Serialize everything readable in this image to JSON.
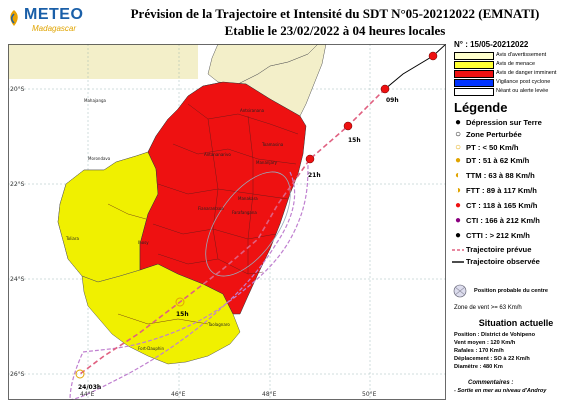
{
  "header": {
    "logo_text": "METEO",
    "logo_sub": "Madagascar",
    "title_line1": "Prévision de la Trajectoire et Intensité du SDT N°05-20212022 (EMNATI)",
    "title_line2": "Etablie le 23/02/2022 à 04 heures locales"
  },
  "map": {
    "lon_labels": [
      "44°E",
      "46°E",
      "48°E",
      "50°E"
    ],
    "lat_labels": [
      "20°S",
      "22°S",
      "24°S",
      "26°S"
    ],
    "track_labels": [
      "09h",
      "15h",
      "21h",
      "15h",
      "24/03h"
    ],
    "place_names": [
      "Antsiranana",
      "Mahajanga",
      "Antananarivo",
      "Fianarantsoa",
      "Toamasina",
      "Mananjary",
      "Farafangana",
      "Morondava",
      "Toliara",
      "Taolagnaro",
      "Ihosy",
      "Manakara",
      "Fort-Dauphin"
    ],
    "colors": {
      "sea": "#ffffff",
      "land_neutral": "#f3efc9",
      "warning": "#ffff33",
      "threat": "#f0f000",
      "danger": "#ee1111",
      "track": "#e0453f",
      "prob_cone": "#c080d0"
    }
  },
  "panel": {
    "date": "N° : 15/05-20212022",
    "levels": [
      {
        "label": "Avis d'avertissement",
        "color": "#ffffcc"
      },
      {
        "label": "Avis de menace",
        "color": "#ffff33"
      },
      {
        "label": "Avis de danger imminent",
        "color": "#ee1111"
      },
      {
        "label": "Vigilance post cyclone",
        "color": "#0033ff"
      },
      {
        "label": "Néant ou alerte levée",
        "color": "#ffffff"
      }
    ],
    "legend_title": "Légende",
    "legend_items": [
      {
        "icon": "filled-circle-icon",
        "label": "Dépression sur Terre"
      },
      {
        "icon": "open-circle-icon",
        "label": "Zone Perturbée"
      },
      {
        "icon": "pt-icon",
        "label": "PT : < 50 Km/h"
      },
      {
        "icon": "dt-icon",
        "label": "DT : 51 à 62 Km/h"
      },
      {
        "icon": "ttm-icon",
        "label": "TTM : 63 à 88 Km/h"
      },
      {
        "icon": "ftt-icon",
        "label": "FTT : 89 à 117 Km/h"
      },
      {
        "icon": "ct-icon",
        "label": "CT : 118 à 165 Km/h"
      },
      {
        "icon": "cti-icon",
        "label": "CTI : 166 à 212 Km/h"
      },
      {
        "icon": "ctti-icon",
        "label": "CTTI : > 212 Km/h"
      },
      {
        "icon": "dashed-line-icon",
        "label": "Trajectoire prévue"
      },
      {
        "icon": "solid-line-icon",
        "label": "Trajectoire observée"
      }
    ],
    "prob_label": "Position probable du centre",
    "wind_zone_label": "Zone de vent >= 63 Km/h",
    "situation_title": "Situation actuelle",
    "situation": [
      "Position : District de Vohipeno",
      "Vent moyen : 120 Km/h",
      "Rafales : 170 Km/h",
      "Déplacement : SO à 22 Km/h",
      "Diamètre : 480 Km"
    ],
    "comments_title": "Commentaires :",
    "comments": "- Sortie en mer au niveau d'Androy"
  }
}
